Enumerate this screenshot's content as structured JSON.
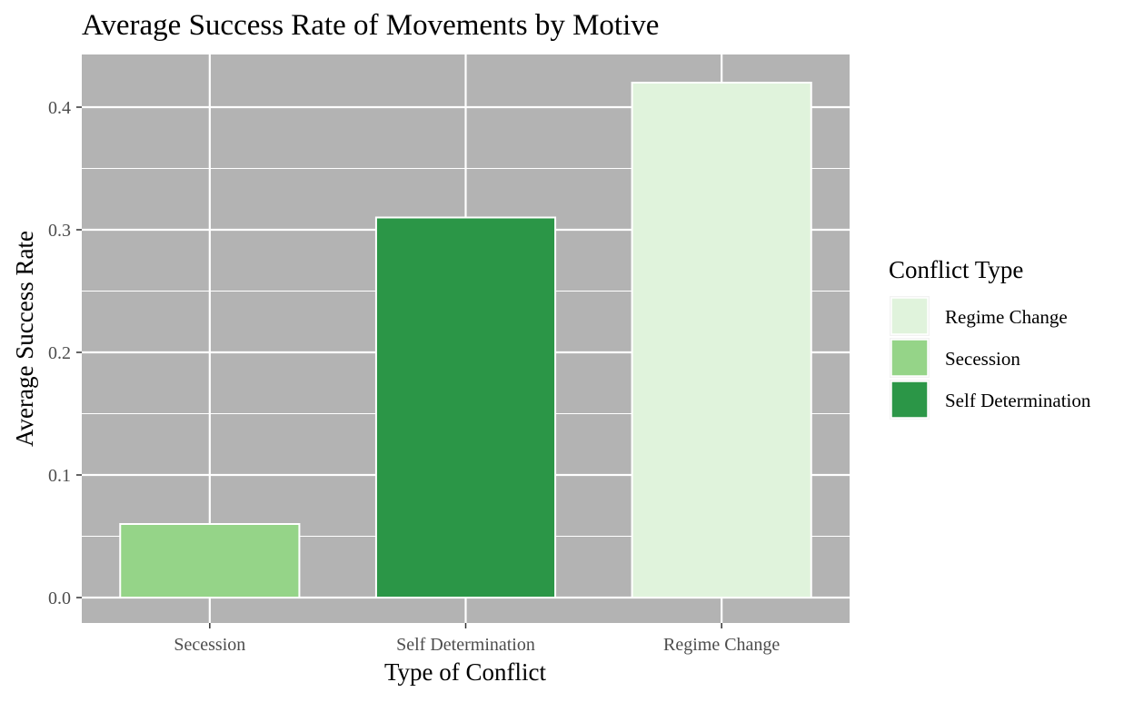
{
  "chart_data": {
    "type": "bar",
    "title": "Average Success Rate of Movements by Motive",
    "xlabel": "Type of Conflict",
    "ylabel": "Average Success Rate",
    "categories": [
      "Secession",
      "Self Determination",
      "Regime Change"
    ],
    "values": [
      0.06,
      0.31,
      0.42
    ],
    "ylim": [
      0,
      0.44
    ],
    "yticks": [
      0.0,
      0.1,
      0.2,
      0.3,
      0.4
    ],
    "ytick_labels": [
      "0.0",
      "0.1",
      "0.2",
      "0.3",
      "0.4"
    ],
    "grid": true,
    "panel_background": "#b3b3b3",
    "grid_color": "#ffffff",
    "bar_outline_color": "#ffffff",
    "bar_colors": {
      "Secession": "#95d488",
      "Self Determination": "#2b9647",
      "Regime Change": "#e0f3dc"
    },
    "legend": {
      "title": "Conflict Type",
      "position": "right",
      "entries": [
        {
          "label": "Regime Change",
          "color": "#e0f3dc"
        },
        {
          "label": "Secession",
          "color": "#95d488"
        },
        {
          "label": "Self Determination",
          "color": "#2b9647"
        }
      ]
    }
  }
}
